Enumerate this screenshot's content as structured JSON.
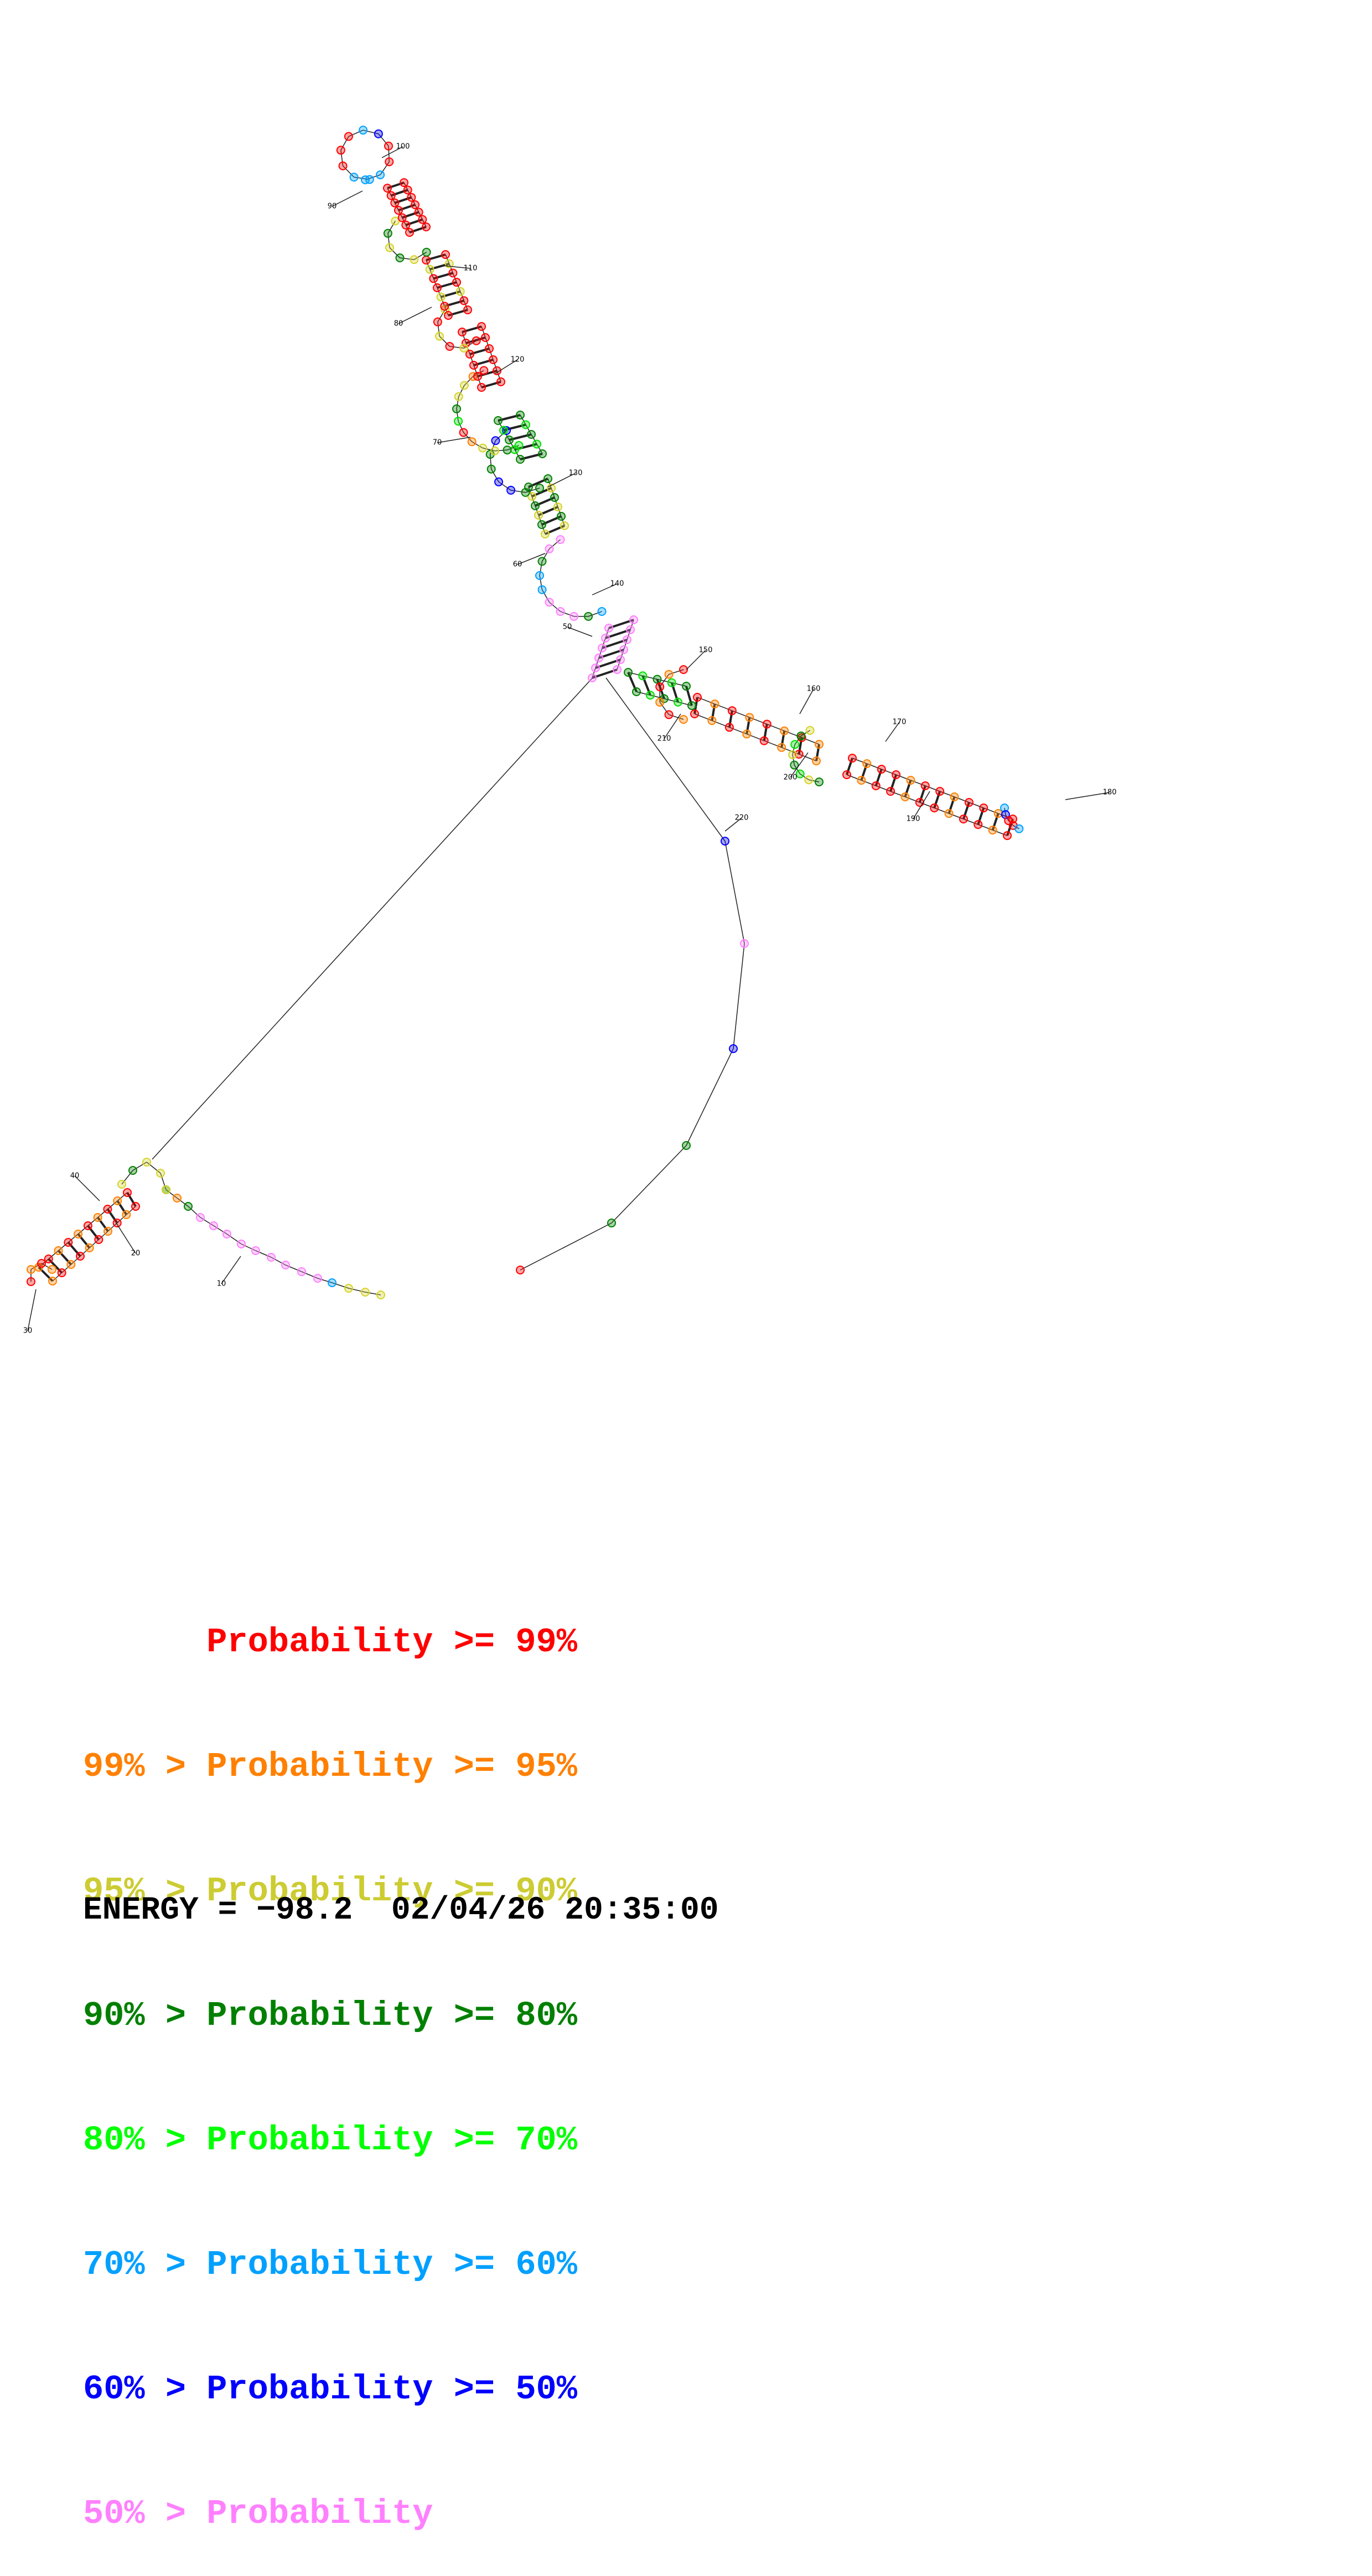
{
  "diagram": {
    "type": "rna-secondary-structure",
    "position_labels": [
      {
        "label": "10"
      },
      {
        "label": "20"
      },
      {
        "label": "30"
      },
      {
        "label": "40"
      },
      {
        "label": "50"
      },
      {
        "label": "60"
      },
      {
        "label": "70"
      },
      {
        "label": "80"
      },
      {
        "label": "90"
      },
      {
        "label": "100"
      },
      {
        "label": "110"
      },
      {
        "label": "120"
      },
      {
        "label": "130"
      },
      {
        "label": "140"
      },
      {
        "label": "150"
      },
      {
        "label": "160"
      },
      {
        "label": "170"
      },
      {
        "label": "180"
      },
      {
        "label": "190"
      },
      {
        "label": "200"
      },
      {
        "label": "210"
      },
      {
        "label": "220"
      }
    ],
    "colors": {
      "p99": "#ff0000",
      "p95": "#ff8000",
      "p90": "#d4d42a",
      "p80": "#008000",
      "p70": "#00e000",
      "p60": "#00a0ff",
      "p50": "#0000ff",
      "p0": "#ff80ff"
    }
  },
  "legend": [
    {
      "prefix": "",
      "text": "Probability >= 99%",
      "color": "#ff0000"
    },
    {
      "prefix": "99% > ",
      "text": "Probability >= 95%",
      "color": "#ff8000"
    },
    {
      "prefix": "95% > ",
      "text": "Probability >= 90%",
      "color": "#cccc33"
    },
    {
      "prefix": "90% > ",
      "text": "Probability >= 80%",
      "color": "#008000"
    },
    {
      "prefix": "80% > ",
      "text": "Probability >= 70%",
      "color": "#00ff00"
    },
    {
      "prefix": "70% > ",
      "text": "Probability >= 60%",
      "color": "#00a0ff"
    },
    {
      "prefix": "60% > ",
      "text": "Probability >= 50%",
      "color": "#0000ff"
    },
    {
      "prefix": "50% > ",
      "text": "Probability",
      "color": "#ff80ff"
    }
  ],
  "footer": {
    "text": "ENERGY = −98.2  02/04/26 20:35:00"
  }
}
